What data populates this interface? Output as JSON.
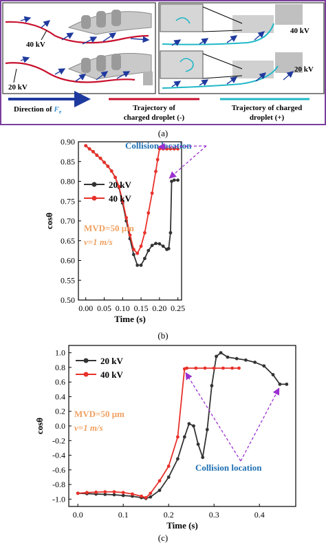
{
  "figure": {
    "panel_a": {
      "label": "(a)",
      "left_labels": [
        "40 kV",
        "20 kV"
      ],
      "right_labels": [
        "40 kV",
        "20 kV"
      ],
      "legend": {
        "direction_prefix": "Direction of ",
        "direction_symbol": "F",
        "direction_subscript": "e",
        "trajectory_neg_line1": "Trajectory of",
        "trajectory_neg_line2": "charged droplet (-)",
        "trajectory_pos_line1": "Trajectory of charged",
        "trajectory_pos_line2": "droplet (+)"
      },
      "colors": {
        "border": "#7a3e9d",
        "arrow": "#1f3a9e",
        "red_trajectory": "#c8102e",
        "cyan_trajectory": "#20b8c8",
        "fe_text": "#3c8fd4"
      }
    },
    "panel_b": {
      "label": "(b)"
    },
    "panel_c": {
      "label": "(c)"
    }
  },
  "chart_data": [
    {
      "type": "line",
      "panel": "(b)",
      "xlabel": "Time (s)",
      "ylabel": "cosθ",
      "xlim": [
        -0.02,
        0.26
      ],
      "ylim": [
        0.5,
        0.9
      ],
      "xticks": [
        "0.00",
        "0.05",
        "0.10",
        "0.15",
        "0.20",
        "0.25"
      ],
      "yticks": [
        "0.50",
        "0.55",
        "0.60",
        "0.65",
        "0.70",
        "0.75",
        "0.80",
        "0.85",
        "0.90"
      ],
      "legend_position": "left",
      "annotation": "Collision location",
      "annotation_color": "#1f6fb2",
      "conditions": [
        "MVD=50 μm",
        "v=1 m/s"
      ],
      "conditions_color": "#f0a060",
      "series": [
        {
          "name": "20 kV",
          "color": "#333333",
          "x": [
            0.0,
            0.01,
            0.02,
            0.03,
            0.04,
            0.05,
            0.06,
            0.07,
            0.08,
            0.09,
            0.1,
            0.11,
            0.12,
            0.13,
            0.14,
            0.15,
            0.16,
            0.17,
            0.18,
            0.19,
            0.2,
            0.21,
            0.22,
            0.225,
            0.23,
            0.233,
            0.24,
            0.25
          ],
          "y": [
            0.89,
            0.882,
            0.875,
            0.866,
            0.858,
            0.848,
            0.838,
            0.826,
            0.81,
            0.785,
            0.745,
            0.7,
            0.655,
            0.615,
            0.588,
            0.588,
            0.605,
            0.625,
            0.638,
            0.643,
            0.642,
            0.636,
            0.628,
            0.63,
            0.67,
            0.8,
            0.803,
            0.803
          ]
        },
        {
          "name": "40 kV",
          "color": "#e8312a",
          "x": [
            0.0,
            0.01,
            0.02,
            0.03,
            0.04,
            0.05,
            0.06,
            0.07,
            0.08,
            0.09,
            0.1,
            0.11,
            0.12,
            0.13,
            0.14,
            0.15,
            0.16,
            0.17,
            0.18,
            0.19,
            0.195,
            0.2,
            0.21,
            0.22,
            0.23,
            0.24,
            0.25
          ],
          "y": [
            0.89,
            0.882,
            0.875,
            0.866,
            0.858,
            0.848,
            0.838,
            0.826,
            0.81,
            0.787,
            0.75,
            0.708,
            0.664,
            0.628,
            0.618,
            0.636,
            0.67,
            0.72,
            0.77,
            0.825,
            0.855,
            0.882,
            0.882,
            0.882,
            0.882,
            0.882,
            0.882
          ]
        }
      ],
      "collision_points": [
        [
          0.235,
          0.803
        ],
        [
          0.205,
          0.882
        ]
      ]
    },
    {
      "type": "line",
      "panel": "(c)",
      "xlabel": "Time (s)",
      "ylabel": "cosθ",
      "xlim": [
        -0.02,
        0.48
      ],
      "ylim": [
        -1.1,
        1.1
      ],
      "xticks": [
        "0.0",
        "0.1",
        "0.2",
        "0.3",
        "0.4"
      ],
      "yticks": [
        "-1.0",
        "-0.8",
        "-0.6",
        "-0.4",
        "-0.2",
        "0.0",
        "0.2",
        "0.4",
        "0.6",
        "0.8",
        "1.0"
      ],
      "legend_position": "top-left",
      "annotation": "Collision location",
      "annotation_color": "#1f6fb2",
      "conditions": [
        "MVD=50 μm",
        "v=1 m/s"
      ],
      "conditions_color": "#f0a060",
      "series": [
        {
          "name": "20 kV",
          "color": "#333333",
          "x": [
            0.0,
            0.02,
            0.04,
            0.06,
            0.08,
            0.1,
            0.12,
            0.14,
            0.15,
            0.16,
            0.18,
            0.2,
            0.22,
            0.235,
            0.245,
            0.255,
            0.265,
            0.275,
            0.285,
            0.295,
            0.305,
            0.315,
            0.33,
            0.35,
            0.37,
            0.39,
            0.41,
            0.43,
            0.445,
            0.46
          ],
          "y": [
            -0.92,
            -0.925,
            -0.93,
            -0.935,
            -0.94,
            -0.95,
            -0.96,
            -0.98,
            -0.99,
            -0.97,
            -0.88,
            -0.7,
            -0.45,
            -0.15,
            0.03,
            0.0,
            -0.25,
            -0.43,
            -0.05,
            0.55,
            0.95,
            1.0,
            0.94,
            0.92,
            0.9,
            0.87,
            0.82,
            0.7,
            0.57,
            0.57
          ]
        },
        {
          "name": "40 kV",
          "color": "#e8312a",
          "x": [
            0.0,
            0.02,
            0.04,
            0.06,
            0.08,
            0.1,
            0.12,
            0.14,
            0.15,
            0.16,
            0.18,
            0.2,
            0.22,
            0.235,
            0.24,
            0.26,
            0.28,
            0.3,
            0.32,
            0.34,
            0.355
          ],
          "y": [
            -0.92,
            -0.91,
            -0.905,
            -0.9,
            -0.9,
            -0.91,
            -0.93,
            -0.96,
            -0.98,
            -0.92,
            -0.75,
            -0.55,
            -0.15,
            0.78,
            0.79,
            0.79,
            0.79,
            0.79,
            0.79,
            0.79,
            0.79
          ]
        }
      ],
      "collision_points": [
        [
          0.235,
          0.78
        ],
        [
          0.44,
          0.57
        ]
      ]
    }
  ]
}
